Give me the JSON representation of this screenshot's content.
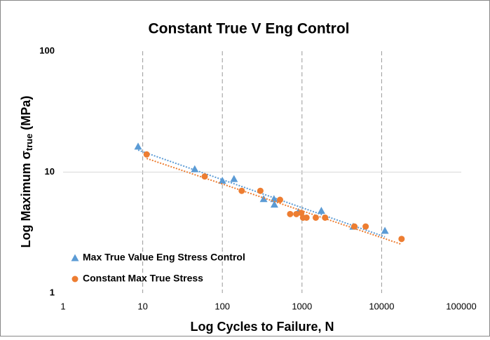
{
  "chart_data": {
    "type": "scatter",
    "title": "Constant True V Eng Control",
    "x_label": "Log Cycles to Failure, N",
    "y_label": {
      "main": "Log Maximum σ",
      "sub": "true",
      "end": "(MPa)"
    },
    "xscale": "log",
    "yscale": "log",
    "xlim": [
      1,
      100000
    ],
    "xticks": [
      1,
      10,
      100,
      1000,
      10000,
      100000
    ],
    "ylim": [
      1,
      100
    ],
    "yticks": [
      1,
      10,
      100
    ],
    "xgrid": "dashed",
    "ygrid": "solid",
    "legend": "lower left",
    "trendline": "power",
    "series": [
      {
        "name": "Max True Value Eng Stress Control",
        "color": "#5b9bd5",
        "marker": "triangle",
        "x": [
          8.75,
          45,
          100,
          140,
          330,
          445,
          450,
          900,
          1750,
          4400,
          11000
        ],
        "values": [
          16.3,
          10.6,
          8.5,
          8.8,
          6.0,
          6.0,
          5.4,
          4.7,
          4.8,
          3.55,
          3.28
        ]
      },
      {
        "name": "Constant Max True Stress",
        "color": "#ed7d31",
        "marker": "circle",
        "x": [
          11.2,
          60,
          175,
          300,
          530,
          710,
          850,
          980,
          1030,
          1140,
          1490,
          1950,
          4550,
          6300,
          17800
        ],
        "values": [
          14,
          9.2,
          7.0,
          7.0,
          5.9,
          4.5,
          4.5,
          4.6,
          4.2,
          4.2,
          4.2,
          4.2,
          3.55,
          3.55,
          2.8
        ]
      }
    ]
  }
}
